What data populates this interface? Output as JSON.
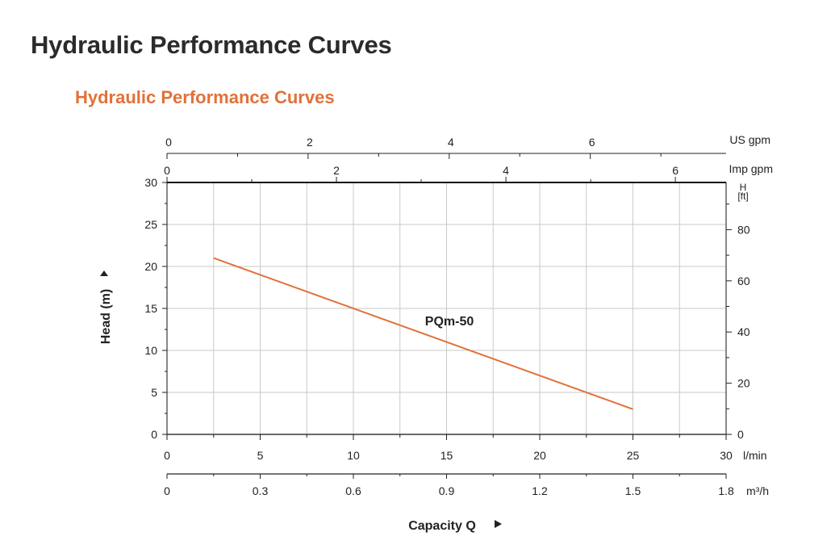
{
  "page": {
    "title": "Hydraulic Performance Curves"
  },
  "section": {
    "title": "Hydraulic Performance Curves"
  },
  "chart_data": {
    "type": "line",
    "series": [
      {
        "name": "PQm-50",
        "x": [
          2.5,
          25
        ],
        "y": [
          21,
          3
        ]
      }
    ],
    "xlabel": "Capacity Q",
    "ylabel": "Head (m)",
    "xlim": [
      0,
      30
    ],
    "ylim": [
      0,
      30
    ],
    "x_ticks": [
      0,
      5,
      10,
      15,
      20,
      25,
      30
    ],
    "y_ticks": [
      0,
      5,
      10,
      15,
      20,
      25,
      30
    ],
    "x_unit": "l/min",
    "grid": true,
    "secondary_axes": {
      "us_gpm": {
        "label": "US gpm",
        "ticks": [
          0,
          2,
          4,
          6
        ],
        "max": 7.925
      },
      "imp_gpm": {
        "label": "Imp gpm",
        "ticks": [
          0,
          2,
          4,
          6
        ],
        "max": 6.599
      },
      "m3h": {
        "label": "m³/h",
        "ticks": [
          "0",
          "0.3",
          "0.6",
          "0.9",
          "1.2",
          "1.5",
          "1.8"
        ],
        "max": 1.8
      },
      "head_ft": {
        "label": "H",
        "unit": "[ft]",
        "ticks": [
          0,
          20,
          40,
          60,
          80
        ],
        "max": 98.43
      }
    },
    "line_color": "#e2713a"
  }
}
